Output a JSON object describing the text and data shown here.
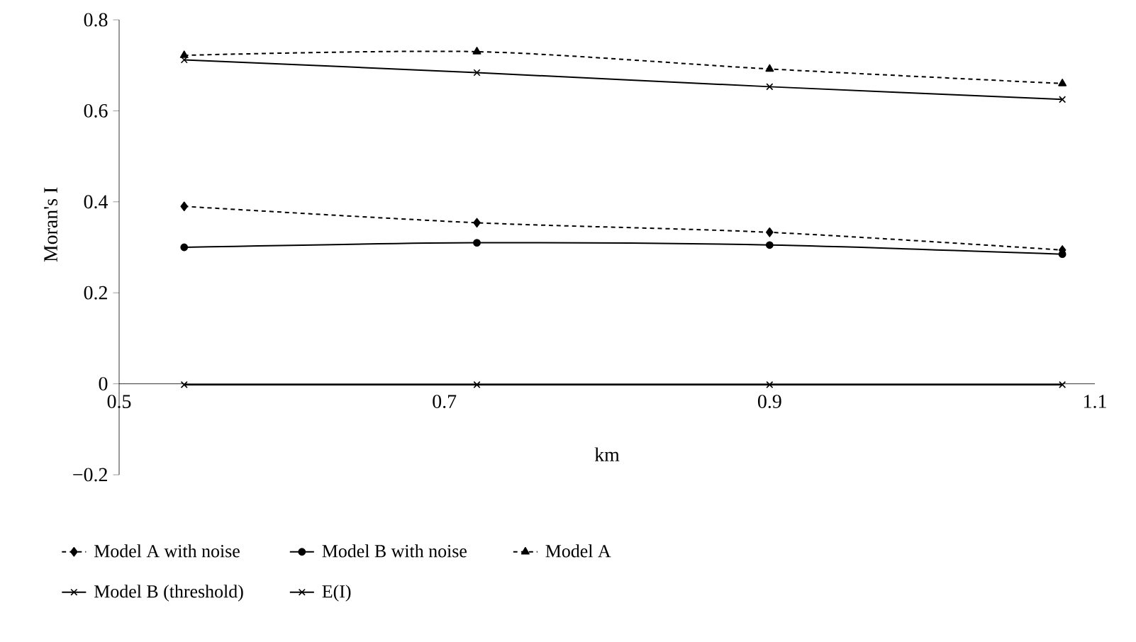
{
  "chart_data": {
    "type": "line",
    "xlabel": "km",
    "ylabel": "Moran's I",
    "xlim": [
      0.5,
      1.1
    ],
    "xticks": [
      0.5,
      0.7,
      0.9,
      1.1
    ],
    "ylim": [
      -0.2,
      0.8
    ],
    "yticks": [
      {
        "value": -0.2,
        "label": "−0.2"
      },
      0,
      0.2,
      0.4,
      0.6,
      0.8
    ],
    "x": [
      0.54,
      0.72,
      0.9,
      1.08
    ],
    "legend": "bottom",
    "grid": false,
    "series": [
      {
        "name": "Model A with noise",
        "color": "#000000",
        "marker": "diamond",
        "line_style": "dashed",
        "values": [
          0.39,
          0.354,
          0.333,
          0.294
        ]
      },
      {
        "name": "Model B with noise",
        "color": "#000000",
        "marker": "circle",
        "line_style": "solid",
        "values": [
          0.3,
          0.31,
          0.305,
          0.285
        ]
      },
      {
        "name": "Model A",
        "color": "#000000",
        "marker": "triangle",
        "line_style": "dashed",
        "values": [
          0.722,
          0.73,
          0.692,
          0.66
        ]
      },
      {
        "name": "Model B (threshold)",
        "color": "#000000",
        "marker": "cross",
        "line_style": "solid",
        "values": [
          0.712,
          0.684,
          0.653,
          0.625
        ]
      },
      {
        "name": "E(I)",
        "color": "#000000",
        "marker": "cross",
        "line_style": "solid",
        "values": [
          -0.002,
          -0.002,
          -0.002,
          -0.002
        ]
      }
    ]
  }
}
